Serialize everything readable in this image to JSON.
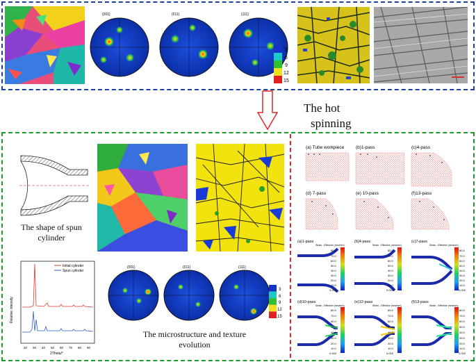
{
  "title": {
    "line1": "The hot",
    "line2": "spinning"
  },
  "captions": {
    "shape": "The shape of spun cylinder",
    "micro": "The microstructure and texture evolution"
  },
  "pole_figure_labels": [
    "{001}",
    "{011}",
    "{111}"
  ],
  "colorbar_ticks": [
    "3",
    "6",
    "9",
    "12",
    "15"
  ],
  "xrd_legend": [
    "Initial cylinder",
    "Spun cylinder"
  ],
  "xrd_axis": {
    "xlabel": "2Theta/°",
    "ylabel": "Relative intensity",
    "ticks": [
      "20",
      "30",
      "40",
      "50",
      "60",
      "70",
      "80",
      "90"
    ]
  },
  "sim_top_labels": [
    "(a) Tube workpiece",
    "(b)1-pass",
    "(c)4-pass",
    "(d) 7-pass",
    "(e) 10-pass",
    "(f)13-pass"
  ],
  "sim_bottom_labels": [
    "(a)1-pass",
    "(b)4-pass",
    "(c)7-pass",
    "(d)10-pass",
    "(e)12-pass",
    "(f)13-pass"
  ],
  "strain_legend": {
    "title": "Strain - Effective (mm/mm)",
    "ticks": [
      "80.0",
      "70.0",
      "60.0",
      "50.0",
      "40.0",
      "30.0",
      "20.0",
      "10.0",
      "0.000"
    ]
  },
  "colors": {
    "top_border": "#1d3f9e",
    "bottom_border": "#1a9a2a",
    "divider": "#e0262b",
    "arrow": "#e0262b"
  }
}
